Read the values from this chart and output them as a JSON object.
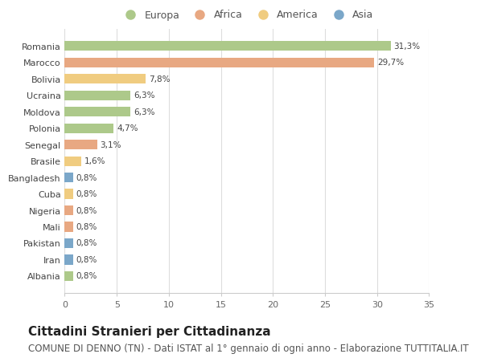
{
  "categories": [
    "Romania",
    "Marocco",
    "Bolivia",
    "Ucraina",
    "Moldova",
    "Polonia",
    "Senegal",
    "Brasile",
    "Bangladesh",
    "Cuba",
    "Nigeria",
    "Mali",
    "Pakistan",
    "Iran",
    "Albania"
  ],
  "values": [
    31.3,
    29.7,
    7.8,
    6.3,
    6.3,
    4.7,
    3.1,
    1.6,
    0.8,
    0.8,
    0.8,
    0.8,
    0.8,
    0.8,
    0.8
  ],
  "labels": [
    "31,3%",
    "29,7%",
    "7,8%",
    "6,3%",
    "6,3%",
    "4,7%",
    "3,1%",
    "1,6%",
    "0,8%",
    "0,8%",
    "0,8%",
    "0,8%",
    "0,8%",
    "0,8%",
    "0,8%"
  ],
  "continent": [
    "Europa",
    "Africa",
    "America",
    "Europa",
    "Europa",
    "Europa",
    "Africa",
    "America",
    "Asia",
    "America",
    "Africa",
    "Africa",
    "Asia",
    "Asia",
    "Europa"
  ],
  "colors": {
    "Europa": "#adc98a",
    "Africa": "#e8a882",
    "America": "#f0cc80",
    "Asia": "#7ba7c9"
  },
  "legend_order": [
    "Europa",
    "Africa",
    "America",
    "Asia"
  ],
  "xlim": [
    0,
    35
  ],
  "xticks": [
    0,
    5,
    10,
    15,
    20,
    25,
    30,
    35
  ],
  "plot_bg": "#ffffff",
  "fig_bg": "#ffffff",
  "title": "Cittadini Stranieri per Cittadinanza",
  "subtitle": "COMUNE DI DENNO (TN) - Dati ISTAT al 1° gennaio di ogni anno - Elaborazione TUTTITALIA.IT",
  "title_fontsize": 11,
  "subtitle_fontsize": 8.5,
  "bar_height": 0.6
}
